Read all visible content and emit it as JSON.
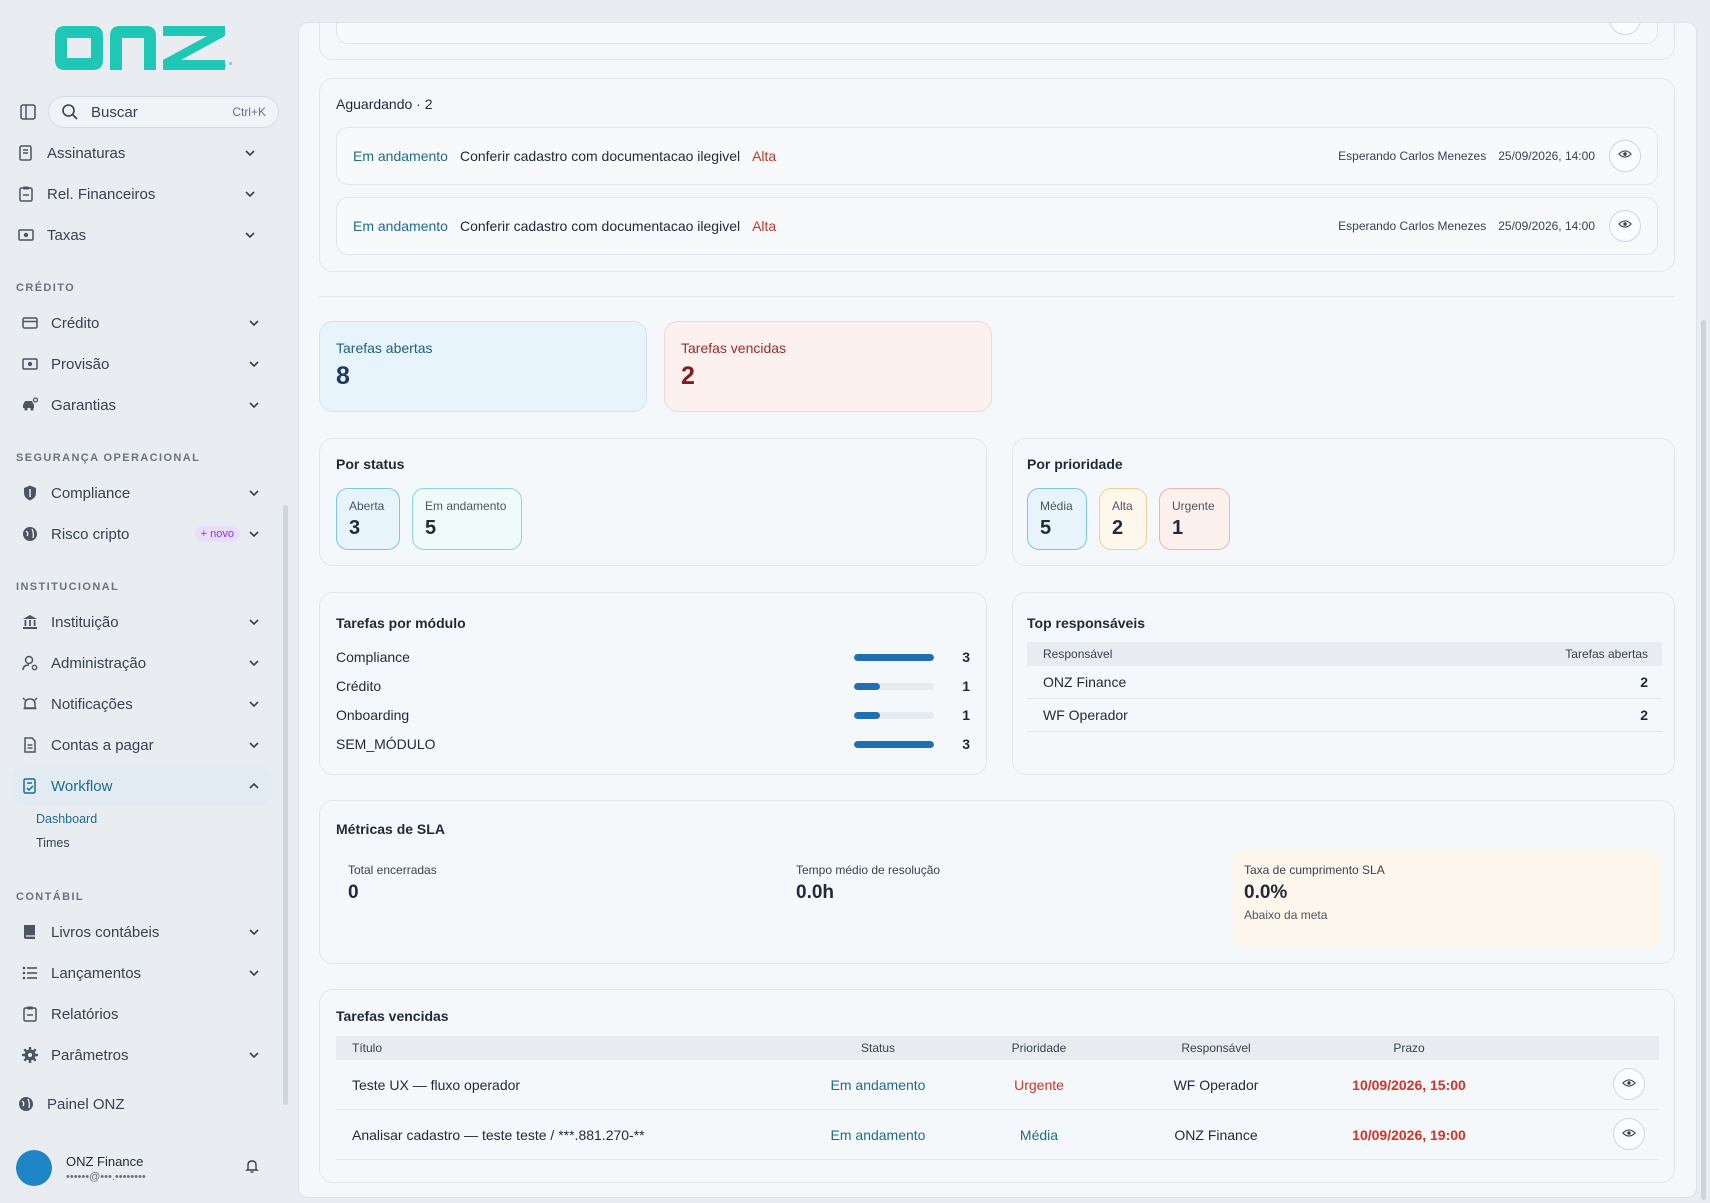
{
  "sidebar": {
    "logo": "onz",
    "search": {
      "label": "Buscar",
      "shortcut": "Ctrl+K"
    },
    "items_top": [
      {
        "label": "Assinaturas",
        "icon": "signature-icon"
      },
      {
        "label": "Rel. Financeiros",
        "icon": "clipboard-icon"
      },
      {
        "label": "Taxas",
        "icon": "money-icon"
      }
    ],
    "sections": {
      "credito": "CRÉDITO",
      "seguranca": "SEGURANÇA OPERACIONAL",
      "institucional": "INSTITUCIONAL",
      "contabil": "CONTÁBIL"
    },
    "items_credito": [
      {
        "label": "Crédito",
        "icon": "card-icon"
      },
      {
        "label": "Provisão",
        "icon": "money-icon"
      },
      {
        "label": "Garantias",
        "icon": "car-icon"
      }
    ],
    "items_seguranca": [
      {
        "label": "Compliance",
        "icon": "shield-icon"
      },
      {
        "label": "Risco cripto",
        "icon": "globe-icon",
        "badge": "+ novo"
      }
    ],
    "items_institucional": [
      {
        "label": "Instituição",
        "icon": "bank-icon"
      },
      {
        "label": "Administração",
        "icon": "user-gear-icon"
      },
      {
        "label": "Notificações",
        "icon": "alarm-icon"
      },
      {
        "label": "Contas a pagar",
        "icon": "document-icon"
      },
      {
        "label": "Workflow",
        "icon": "workflow-icon"
      }
    ],
    "workflow_sub": [
      "Dashboard",
      "Times"
    ],
    "items_contabil": [
      {
        "label": "Livros contábeis",
        "icon": "book-icon"
      },
      {
        "label": "Lançamentos",
        "icon": "list-icon"
      },
      {
        "label": "Relatórios",
        "icon": "clipboard-icon"
      },
      {
        "label": "Parâmetros",
        "icon": "gear-icon"
      }
    ],
    "painel": "Painel ONZ",
    "user": {
      "name": "ONZ Finance",
      "email": "••••••@•••.••••••••"
    }
  },
  "waiting": {
    "header": "Aguardando · 2",
    "rows": [
      {
        "status": "Em andamento",
        "title": "Conferir cadastro com documentacao ilegivel",
        "priority": "Alta",
        "who": "Esperando Carlos Menezes",
        "date": "25/09/2026, 14:00"
      },
      {
        "status": "Em andamento",
        "title": "Conferir cadastro com documentacao ilegivel",
        "priority": "Alta",
        "who": "Esperando Carlos Menezes",
        "date": "25/09/2026, 14:00"
      }
    ]
  },
  "stats": {
    "abertas": {
      "label": "Tarefas abertas",
      "value": "8"
    },
    "vencidas": {
      "label": "Tarefas vencidas",
      "value": "2"
    }
  },
  "por_status": {
    "title": "Por status",
    "chips": [
      {
        "label": "Aberta",
        "value": "3"
      },
      {
        "label": "Em andamento",
        "value": "5"
      }
    ]
  },
  "por_prioridade": {
    "title": "Por prioridade",
    "chips": [
      {
        "label": "Média",
        "value": "5"
      },
      {
        "label": "Alta",
        "value": "2"
      },
      {
        "label": "Urgente",
        "value": "1"
      }
    ]
  },
  "modulos": {
    "title": "Tarefas por módulo",
    "rows": [
      {
        "label": "Compliance",
        "value": "3",
        "fraction": 1.0
      },
      {
        "label": "Crédito",
        "value": "1",
        "fraction": 0.33
      },
      {
        "label": "Onboarding",
        "value": "1",
        "fraction": 0.33
      },
      {
        "label": "SEM_MÓDULO",
        "value": "3",
        "fraction": 1.0
      }
    ]
  },
  "top_resp": {
    "title": "Top responsáveis",
    "headers": [
      "Responsável",
      "Tarefas abertas"
    ],
    "rows": [
      {
        "name": "ONZ Finance",
        "count": "2"
      },
      {
        "name": "WF Operador",
        "count": "2"
      }
    ]
  },
  "sla": {
    "title": "Métricas de SLA",
    "total": {
      "label": "Total encerradas",
      "value": "0"
    },
    "tempo": {
      "label": "Tempo médio de resolução",
      "value": "0.0h"
    },
    "taxa": {
      "label": "Taxa de cumprimento SLA",
      "value": "0.0%",
      "note": "Abaixo da meta"
    }
  },
  "vencidas": {
    "title": "Tarefas vencidas",
    "headers": [
      "Título",
      "Status",
      "Prioridade",
      "Responsável",
      "Prazo"
    ],
    "rows": [
      {
        "title": "Teste UX — fluxo operador",
        "status": "Em andamento",
        "priority": "Urgente",
        "owner": "WF Operador",
        "deadline": "10/09/2026, 15:00"
      },
      {
        "title": "Analisar cadastro — teste teste / ***.881.270-**",
        "status": "Em andamento",
        "priority": "Média",
        "owner": "ONZ Finance",
        "deadline": "10/09/2026, 19:00"
      }
    ]
  },
  "colors": {
    "brand": "#1ec8b4",
    "accent": "#1e6b8f",
    "danger": "#d93025",
    "bar": "#1f6fb5"
  }
}
